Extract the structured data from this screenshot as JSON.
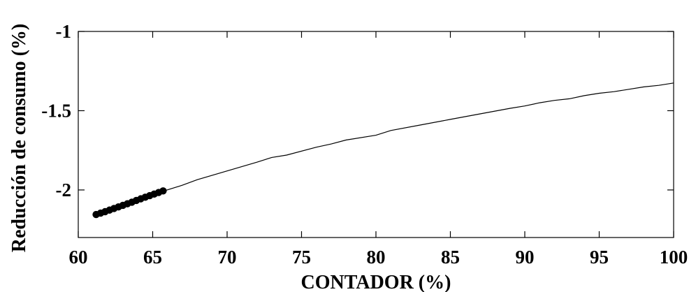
{
  "chart_data": {
    "type": "line",
    "xlabel": "CONTADOR (%)",
    "ylabel": "Reducción de consumo (%)",
    "xlim": [
      60,
      100
    ],
    "ylim": [
      -2.3,
      -1
    ],
    "x_ticks": [
      60,
      65,
      70,
      75,
      80,
      85,
      90,
      95,
      100
    ],
    "y_ticks": [
      -1,
      -1.5,
      -2
    ],
    "x_tick_labels": [
      "60",
      "65",
      "70",
      "75",
      "80",
      "85",
      "90",
      "95",
      "100"
    ],
    "y_tick_labels": [
      "-1",
      "-1.5",
      "-2"
    ],
    "grid": false,
    "legend": "none",
    "series": [
      {
        "style": "line",
        "x": [
          61.2,
          62,
          63,
          64,
          65,
          65.8,
          67,
          68,
          70,
          72,
          73,
          74,
          76,
          77,
          78,
          80,
          81,
          83,
          85,
          87,
          89,
          90,
          91,
          92,
          93,
          94,
          95,
          96,
          97,
          98,
          99,
          100
        ],
        "y": [
          -2.155,
          -2.13,
          -2.1,
          -2.07,
          -2.035,
          -2.005,
          -1.97,
          -1.935,
          -1.88,
          -1.825,
          -1.795,
          -1.78,
          -1.73,
          -1.71,
          -1.685,
          -1.655,
          -1.625,
          -1.59,
          -1.555,
          -1.52,
          -1.485,
          -1.47,
          -1.45,
          -1.435,
          -1.425,
          -1.405,
          -1.39,
          -1.38,
          -1.365,
          -1.35,
          -1.34,
          -1.325
        ]
      },
      {
        "style": "markers",
        "x": [
          61.2,
          61.5,
          61.8,
          62.1,
          62.4,
          62.7,
          63.0,
          63.3,
          63.6,
          63.9,
          64.2,
          64.5,
          64.8,
          65.1,
          65.4,
          65.7
        ],
        "y": [
          -2.155,
          -2.146,
          -2.137,
          -2.127,
          -2.117,
          -2.107,
          -2.097,
          -2.087,
          -2.077,
          -2.066,
          -2.056,
          -2.046,
          -2.036,
          -2.026,
          -2.016,
          -2.006
        ]
      }
    ]
  }
}
